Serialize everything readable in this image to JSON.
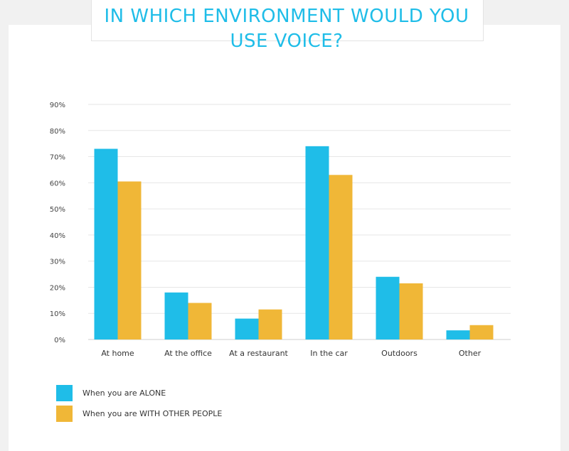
{
  "title": "IN WHICH ENVIRONMENT WOULD YOU USE VOICE?",
  "colors": {
    "alone": "#1fbde8",
    "with_others": "#f0b737",
    "title": "#1fbde8"
  },
  "chart_data": {
    "type": "bar",
    "title": "IN WHICH ENVIRONMENT WOULD YOU USE VOICE?",
    "categories": [
      "At home",
      "At the office",
      "At a restaurant",
      "In the car",
      "Outdoors",
      "Other"
    ],
    "series": [
      {
        "name": "When you are ALONE",
        "values": [
          73,
          18,
          8,
          74,
          24,
          3.5
        ]
      },
      {
        "name": "When you are WITH OTHER PEOPLE",
        "values": [
          60.5,
          14,
          11.5,
          63,
          21.5,
          5.5
        ]
      }
    ],
    "ylim": [
      0,
      90
    ],
    "yticks": [
      "0%",
      "10%",
      "20%",
      "30%",
      "40%",
      "50%",
      "60%",
      "70%",
      "80%",
      "90%"
    ],
    "grid": true,
    "legend_position": "bottom-left",
    "xlabel": "",
    "ylabel": ""
  },
  "legend": [
    {
      "label": "When you are ALONE"
    },
    {
      "label": "When you are WITH OTHER PEOPLE"
    }
  ]
}
